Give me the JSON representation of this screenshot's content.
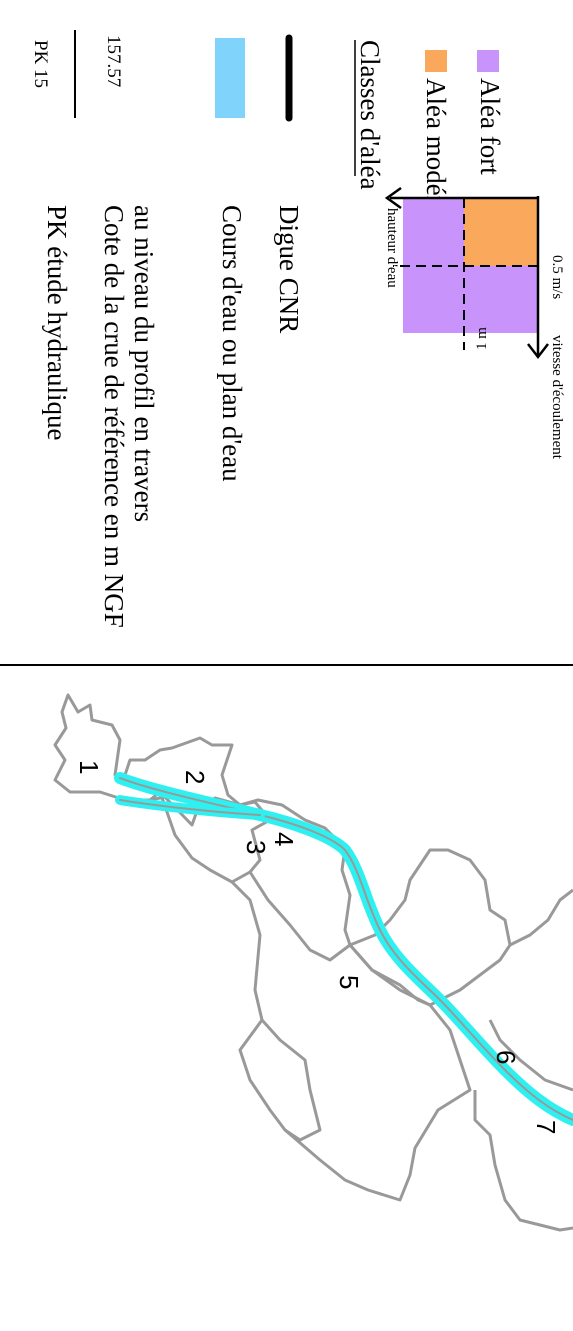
{
  "legend": {
    "pk_sample": "PK 15",
    "pk_label": "PK étude hydraulique",
    "cote_sample": "157.57",
    "cote_label_line1": "Cote de la crue de référence en m NGF",
    "cote_label_line2": "au niveau du profil en travers",
    "water_label": "Cours d'eau ou plan d'eau",
    "digue_label": "Digue CNR",
    "classes_title": "Classes d'aléa",
    "classes": [
      {
        "label": "Aléa modéré",
        "color": "#f9a85c"
      },
      {
        "label": "Aléa fort",
        "color": "#c894fb"
      }
    ]
  },
  "diagram": {
    "y_axis_label": "hauteur d'eau",
    "x_axis_label": "vitesse d'écoulement",
    "height_threshold": "1 m",
    "speed_threshold": "0.5 m/s",
    "moderate_color": "#f9a85c",
    "strong_color": "#c894fb"
  },
  "map": {
    "river_color": "#2ef0f0",
    "boundary_color": "#999999",
    "zones": [
      "1",
      "2",
      "3",
      "4",
      "5",
      "6",
      "7"
    ]
  }
}
